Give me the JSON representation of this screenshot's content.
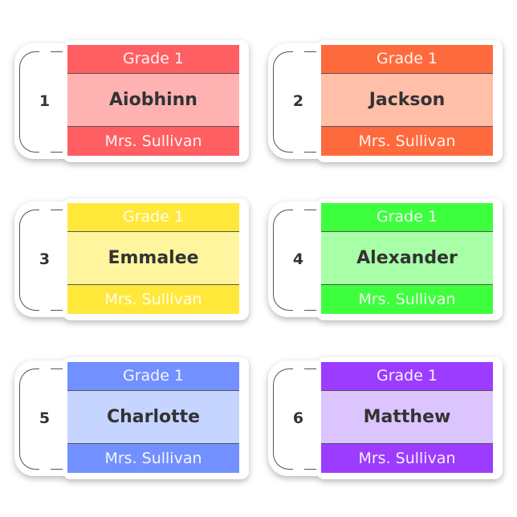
{
  "labels": [
    {
      "number": "1",
      "grade": "Grade 1",
      "name": "Aiobhinn",
      "teacher": "Mrs. Sullivan",
      "band_color": "#FF5E62",
      "name_bg": "#FFB2B2"
    },
    {
      "number": "2",
      "grade": "Grade 1",
      "name": "Jackson",
      "teacher": "Mrs. Sullivan",
      "band_color": "#FF6A3C",
      "name_bg": "#FFBFA9"
    },
    {
      "number": "3",
      "grade": "Grade 1",
      "name": "Emmalee",
      "teacher": "Mrs. Sullivan",
      "band_color": "#FFE83A",
      "name_bg": "#FFF59F"
    },
    {
      "number": "4",
      "grade": "Grade 1",
      "name": "Alexander",
      "teacher": "Mrs. Sullivan",
      "band_color": "#3DFF3D",
      "name_bg": "#A8FFA8"
    },
    {
      "number": "5",
      "grade": "Grade 1",
      "name": "Charlotte",
      "teacher": "Mrs. Sullivan",
      "band_color": "#7290FF",
      "name_bg": "#C6D5FF"
    },
    {
      "number": "6",
      "grade": "Grade 1",
      "name": "Matthew",
      "teacher": "Mrs. Sullivan",
      "band_color": "#9B3CFF",
      "name_bg": "#DCC4FF"
    }
  ]
}
